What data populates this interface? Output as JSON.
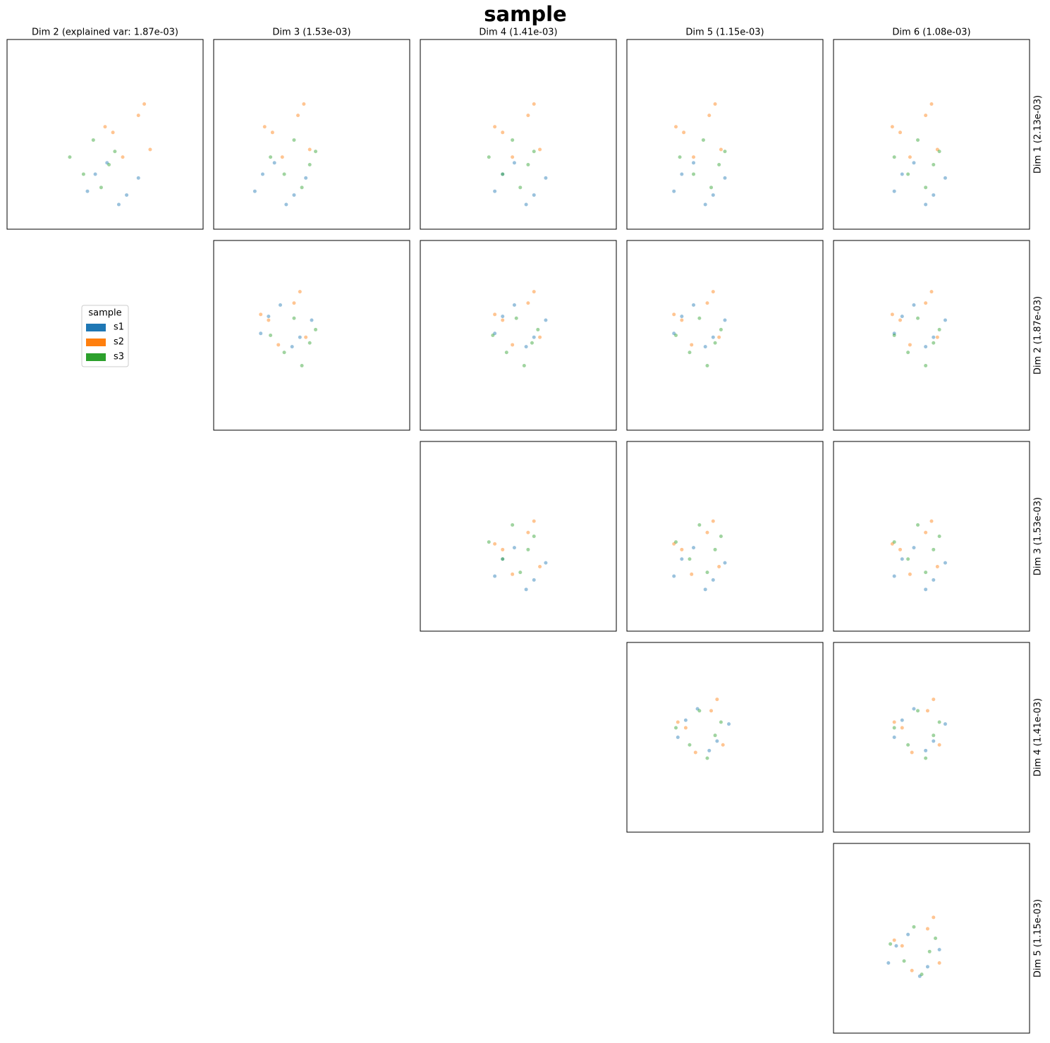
{
  "chart_data": {
    "type": "scatter",
    "title": "sample",
    "column_titles": [
      "Dim 2 (explained var: 1.87e-03)",
      "Dim 3 (1.53e-03)",
      "Dim 4 (1.41e-03)",
      "Dim 5 (1.15e-03)",
      "Dim 6 (1.08e-03)"
    ],
    "row_labels": [
      "Dim 1 (2.13e-03)",
      "Dim 2 (1.87e-03)",
      "Dim 3 (1.53e-03)",
      "Dim 4 (1.41e-03)",
      "Dim 5 (1.15e-03)"
    ],
    "legend": {
      "title": "sample"
    },
    "series": [
      {
        "name": "s1",
        "color": "#1f77b4"
      },
      {
        "name": "s2",
        "color": "#ff7f0e"
      },
      {
        "name": "s3",
        "color": "#2ca02c"
      }
    ],
    "xlim": [
      0,
      1
    ],
    "ylim": [
      0,
      1
    ],
    "rows": [
      {
        "panels": [
          {
            "series": [
              {
                "x": [
                  0.45,
                  0.61,
                  0.51,
                  0.67,
                  0.57,
                  0.41
                ],
                "y": [
                  0.29,
                  0.18,
                  0.35,
                  0.27,
                  0.13,
                  0.2
                ]
              },
              {
                "x": [
                  0.67,
                  0.54,
                  0.73,
                  0.59,
                  0.7,
                  0.5
                ],
                "y": [
                  0.6,
                  0.51,
                  0.42,
                  0.38,
                  0.66,
                  0.54
                ]
              },
              {
                "x": [
                  0.39,
                  0.55,
                  0.48,
                  0.32,
                  0.52,
                  0.44
                ],
                "y": [
                  0.29,
                  0.41,
                  0.22,
                  0.38,
                  0.34,
                  0.47
                ]
              }
            ]
          },
          {
            "series": [
              {
                "x": [
                  0.25,
                  0.41,
                  0.31,
                  0.47,
                  0.37,
                  0.21
                ],
                "y": [
                  0.29,
                  0.18,
                  0.35,
                  0.27,
                  0.13,
                  0.2
                ]
              },
              {
                "x": [
                  0.43,
                  0.3,
                  0.49,
                  0.35,
                  0.46,
                  0.26
                ],
                "y": [
                  0.6,
                  0.51,
                  0.42,
                  0.38,
                  0.66,
                  0.54
                ]
              },
              {
                "x": [
                  0.36,
                  0.52,
                  0.45,
                  0.29,
                  0.49,
                  0.41
                ],
                "y": [
                  0.29,
                  0.41,
                  0.22,
                  0.38,
                  0.34,
                  0.47
                ]
              }
            ]
          },
          {
            "series": [
              {
                "x": [
                  0.42,
                  0.58,
                  0.48,
                  0.64,
                  0.54,
                  0.38
                ],
                "y": [
                  0.29,
                  0.18,
                  0.35,
                  0.27,
                  0.13,
                  0.2
                ]
              },
              {
                "x": [
                  0.55,
                  0.42,
                  0.61,
                  0.47,
                  0.58,
                  0.38
                ],
                "y": [
                  0.6,
                  0.51,
                  0.42,
                  0.38,
                  0.66,
                  0.54
                ]
              },
              {
                "x": [
                  0.42,
                  0.58,
                  0.51,
                  0.35,
                  0.55,
                  0.47
                ],
                "y": [
                  0.29,
                  0.41,
                  0.22,
                  0.38,
                  0.34,
                  0.47
                ]
              }
            ]
          },
          {
            "series": [
              {
                "x": [
                  0.28,
                  0.44,
                  0.34,
                  0.5,
                  0.4,
                  0.24
                ],
                "y": [
                  0.29,
                  0.18,
                  0.35,
                  0.27,
                  0.13,
                  0.2
                ]
              },
              {
                "x": [
                  0.42,
                  0.29,
                  0.48,
                  0.34,
                  0.45,
                  0.25
                ],
                "y": [
                  0.6,
                  0.51,
                  0.42,
                  0.38,
                  0.66,
                  0.54
                ]
              },
              {
                "x": [
                  0.34,
                  0.5,
                  0.43,
                  0.27,
                  0.47,
                  0.39
                ],
                "y": [
                  0.29,
                  0.41,
                  0.22,
                  0.38,
                  0.34,
                  0.47
                ]
              }
            ]
          },
          {
            "series": [
              {
                "x": [
                  0.35,
                  0.51,
                  0.41,
                  0.57,
                  0.47,
                  0.31
                ],
                "y": [
                  0.29,
                  0.18,
                  0.35,
                  0.27,
                  0.13,
                  0.2
                ]
              },
              {
                "x": [
                  0.47,
                  0.34,
                  0.53,
                  0.39,
                  0.5,
                  0.3
                ],
                "y": [
                  0.6,
                  0.51,
                  0.42,
                  0.38,
                  0.66,
                  0.54
                ]
              },
              {
                "x": [
                  0.38,
                  0.54,
                  0.47,
                  0.31,
                  0.51,
                  0.43
                ],
                "y": [
                  0.29,
                  0.41,
                  0.22,
                  0.38,
                  0.34,
                  0.47
                ]
              }
            ]
          }
        ]
      },
      {
        "panels": [
          {
            "series": [
              {
                "x": [
                  0.28,
                  0.44,
                  0.34,
                  0.5,
                  0.4,
                  0.24
                ],
                "y": [
                  0.6,
                  0.49,
                  0.66,
                  0.58,
                  0.44,
                  0.51
                ]
              },
              {
                "x": [
                  0.41,
                  0.28,
                  0.47,
                  0.33,
                  0.44,
                  0.24
                ],
                "y": [
                  0.67,
                  0.58,
                  0.49,
                  0.45,
                  0.73,
                  0.61
                ]
              },
              {
                "x": [
                  0.36,
                  0.52,
                  0.45,
                  0.29,
                  0.49,
                  0.41
                ],
                "y": [
                  0.41,
                  0.53,
                  0.34,
                  0.5,
                  0.46,
                  0.59
                ]
              }
            ]
          },
          {
            "series": [
              {
                "x": [
                  0.42,
                  0.58,
                  0.48,
                  0.64,
                  0.54,
                  0.38
                ],
                "y": [
                  0.6,
                  0.49,
                  0.66,
                  0.58,
                  0.44,
                  0.51
                ]
              },
              {
                "x": [
                  0.55,
                  0.42,
                  0.61,
                  0.47,
                  0.58,
                  0.38
                ],
                "y": [
                  0.67,
                  0.58,
                  0.49,
                  0.45,
                  0.73,
                  0.61
                ]
              },
              {
                "x": [
                  0.44,
                  0.6,
                  0.53,
                  0.37,
                  0.57,
                  0.49
                ],
                "y": [
                  0.41,
                  0.53,
                  0.34,
                  0.5,
                  0.46,
                  0.59
                ]
              }
            ]
          },
          {
            "series": [
              {
                "x": [
                  0.28,
                  0.44,
                  0.34,
                  0.5,
                  0.4,
                  0.24
                ],
                "y": [
                  0.6,
                  0.49,
                  0.66,
                  0.58,
                  0.44,
                  0.51
                ]
              },
              {
                "x": [
                  0.41,
                  0.28,
                  0.47,
                  0.33,
                  0.44,
                  0.24
                ],
                "y": [
                  0.67,
                  0.58,
                  0.49,
                  0.45,
                  0.73,
                  0.61
                ]
              },
              {
                "x": [
                  0.32,
                  0.48,
                  0.41,
                  0.25,
                  0.45,
                  0.37
                ],
                "y": [
                  0.41,
                  0.53,
                  0.34,
                  0.5,
                  0.46,
                  0.59
                ]
              }
            ]
          },
          {
            "series": [
              {
                "x": [
                  0.35,
                  0.51,
                  0.41,
                  0.57,
                  0.47,
                  0.31
                ],
                "y": [
                  0.6,
                  0.49,
                  0.66,
                  0.58,
                  0.44,
                  0.51
                ]
              },
              {
                "x": [
                  0.47,
                  0.34,
                  0.53,
                  0.39,
                  0.5,
                  0.3
                ],
                "y": [
                  0.67,
                  0.58,
                  0.49,
                  0.45,
                  0.73,
                  0.61
                ]
              },
              {
                "x": [
                  0.38,
                  0.54,
                  0.47,
                  0.31,
                  0.51,
                  0.43
                ],
                "y": [
                  0.41,
                  0.53,
                  0.34,
                  0.5,
                  0.46,
                  0.59
                ]
              }
            ]
          }
        ]
      },
      {
        "panels": [
          {
            "series": [
              {
                "x": [
                  0.42,
                  0.58,
                  0.48,
                  0.64,
                  0.54,
                  0.38
                ],
                "y": [
                  0.38,
                  0.27,
                  0.44,
                  0.36,
                  0.22,
                  0.29
                ]
              },
              {
                "x": [
                  0.55,
                  0.42,
                  0.61,
                  0.47,
                  0.58,
                  0.38
                ],
                "y": [
                  0.52,
                  0.43,
                  0.34,
                  0.3,
                  0.58,
                  0.46
                ]
              },
              {
                "x": [
                  0.42,
                  0.58,
                  0.51,
                  0.35,
                  0.55,
                  0.47
                ],
                "y": [
                  0.38,
                  0.5,
                  0.31,
                  0.47,
                  0.43,
                  0.56
                ]
              }
            ]
          },
          {
            "series": [
              {
                "x": [
                  0.28,
                  0.44,
                  0.34,
                  0.5,
                  0.4,
                  0.24
                ],
                "y": [
                  0.38,
                  0.27,
                  0.44,
                  0.36,
                  0.22,
                  0.29
                ]
              },
              {
                "x": [
                  0.41,
                  0.28,
                  0.47,
                  0.33,
                  0.44,
                  0.24
                ],
                "y": [
                  0.52,
                  0.43,
                  0.34,
                  0.3,
                  0.58,
                  0.46
                ]
              },
              {
                "x": [
                  0.32,
                  0.48,
                  0.41,
                  0.25,
                  0.45,
                  0.37
                ],
                "y": [
                  0.38,
                  0.5,
                  0.31,
                  0.47,
                  0.43,
                  0.56
                ]
              }
            ]
          },
          {
            "series": [
              {
                "x": [
                  0.35,
                  0.51,
                  0.41,
                  0.57,
                  0.47,
                  0.31
                ],
                "y": [
                  0.38,
                  0.27,
                  0.44,
                  0.36,
                  0.22,
                  0.29
                ]
              },
              {
                "x": [
                  0.47,
                  0.34,
                  0.53,
                  0.39,
                  0.5,
                  0.3
                ],
                "y": [
                  0.52,
                  0.43,
                  0.34,
                  0.3,
                  0.58,
                  0.46
                ]
              },
              {
                "x": [
                  0.38,
                  0.54,
                  0.47,
                  0.31,
                  0.51,
                  0.43
                ],
                "y": [
                  0.38,
                  0.5,
                  0.31,
                  0.47,
                  0.43,
                  0.56
                ]
              }
            ]
          }
        ]
      },
      {
        "panels": [
          {
            "series": [
              {
                "x": [
                  0.3,
                  0.46,
                  0.36,
                  0.52,
                  0.42,
                  0.26
                ],
                "y": [
                  0.59,
                  0.48,
                  0.65,
                  0.57,
                  0.43,
                  0.5
                ]
              },
              {
                "x": [
                  0.43,
                  0.3,
                  0.49,
                  0.35,
                  0.46,
                  0.26
                ],
                "y": [
                  0.64,
                  0.55,
                  0.46,
                  0.42,
                  0.7,
                  0.58
                ]
              },
              {
                "x": [
                  0.32,
                  0.48,
                  0.41,
                  0.25,
                  0.45,
                  0.37
                ],
                "y": [
                  0.46,
                  0.58,
                  0.39,
                  0.55,
                  0.51,
                  0.64
                ]
              }
            ]
          },
          {
            "series": [
              {
                "x": [
                  0.35,
                  0.51,
                  0.41,
                  0.57,
                  0.47,
                  0.31
                ],
                "y": [
                  0.59,
                  0.48,
                  0.65,
                  0.57,
                  0.43,
                  0.5
                ]
              },
              {
                "x": [
                  0.48,
                  0.35,
                  0.54,
                  0.4,
                  0.51,
                  0.31
                ],
                "y": [
                  0.64,
                  0.55,
                  0.46,
                  0.42,
                  0.7,
                  0.58
                ]
              },
              {
                "x": [
                  0.38,
                  0.54,
                  0.47,
                  0.31,
                  0.51,
                  0.43
                ],
                "y": [
                  0.46,
                  0.58,
                  0.39,
                  0.55,
                  0.51,
                  0.64
                ]
              }
            ]
          }
        ]
      },
      {
        "panels": [
          {
            "series": [
              {
                "x": [
                  0.32,
                  0.48,
                  0.38,
                  0.54,
                  0.44,
                  0.28
                ],
                "y": [
                  0.46,
                  0.35,
                  0.52,
                  0.44,
                  0.3,
                  0.37
                ]
              },
              {
                "x": [
                  0.48,
                  0.35,
                  0.54,
                  0.4,
                  0.51,
                  0.31
                ],
                "y": [
                  0.55,
                  0.46,
                  0.37,
                  0.33,
                  0.61,
                  0.49
                ]
              },
              {
                "x": [
                  0.36,
                  0.52,
                  0.45,
                  0.29,
                  0.49,
                  0.41
                ],
                "y": [
                  0.38,
                  0.5,
                  0.31,
                  0.47,
                  0.43,
                  0.56
                ]
              }
            ]
          }
        ]
      }
    ]
  }
}
